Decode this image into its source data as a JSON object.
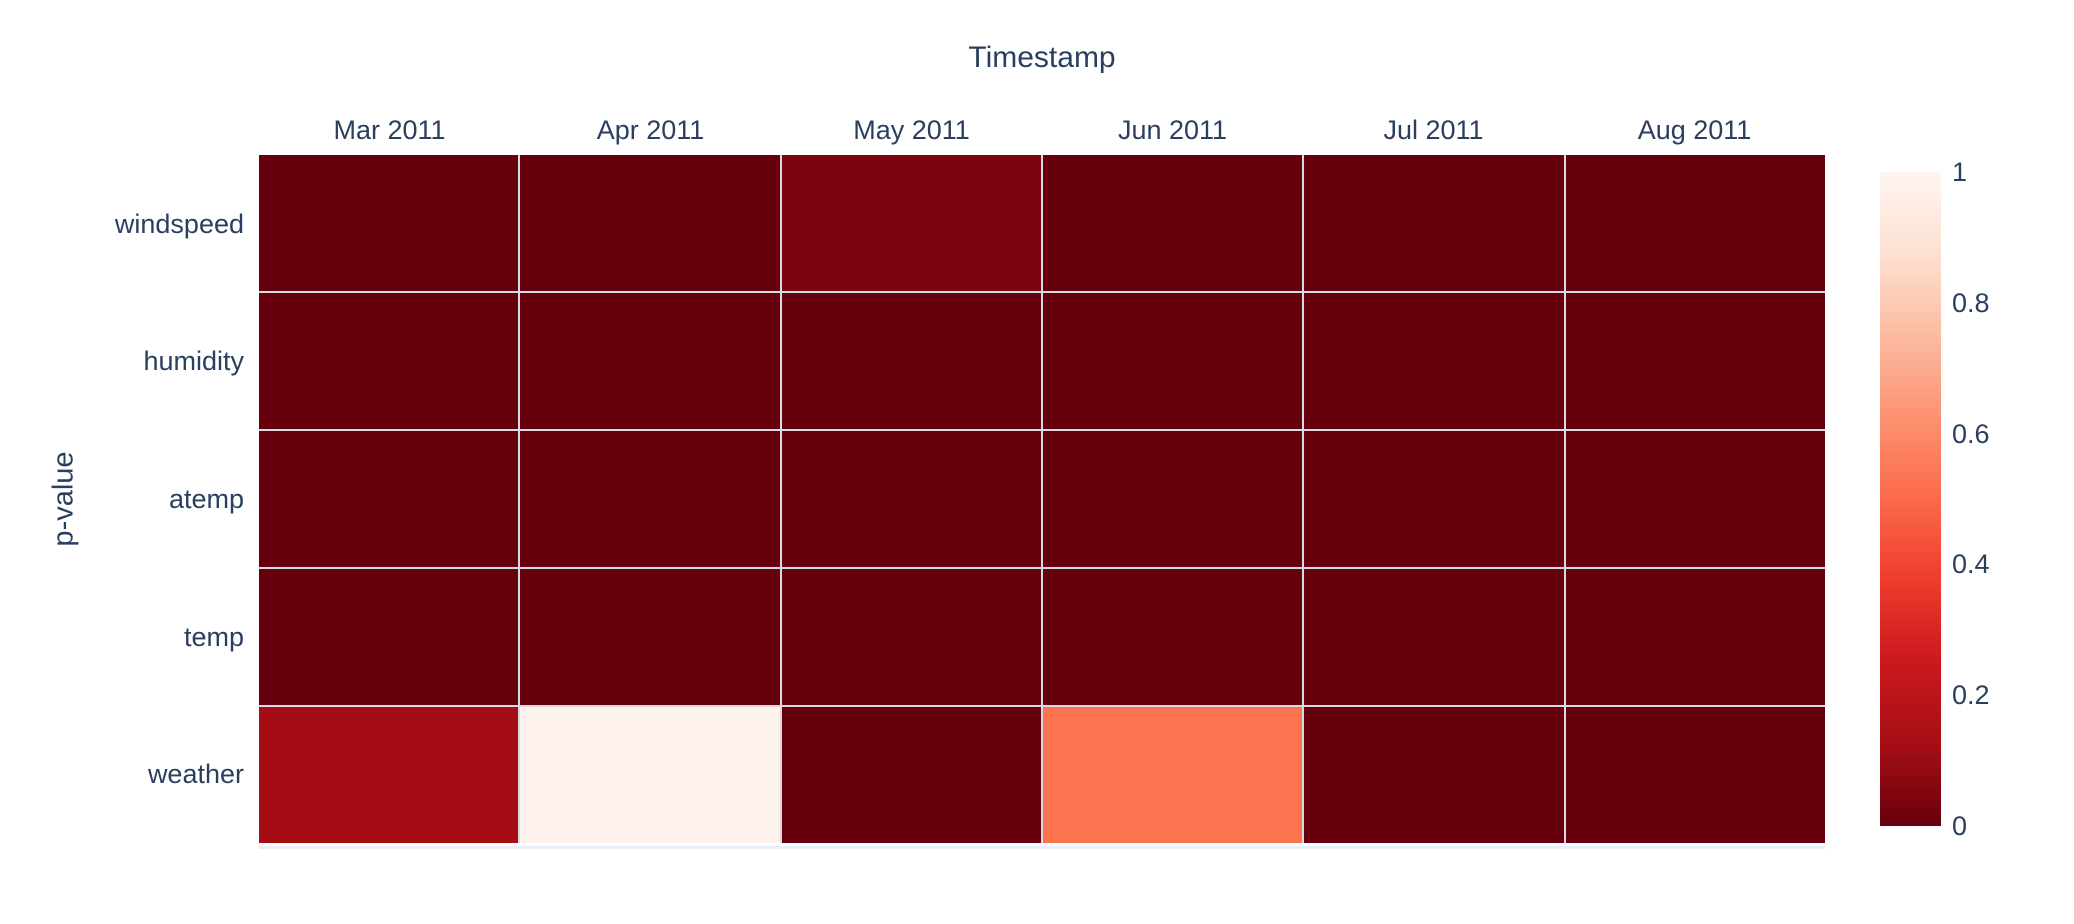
{
  "figure": {
    "x_axis_title": "Timestamp",
    "y_axis_title": "p-value",
    "text_color": "#2a3f5f",
    "background_color": "#ffffff",
    "grid_gap_color": "#d9dbe4"
  },
  "chart_data": {
    "type": "heatmap",
    "title": "Timestamp",
    "xlabel": "Timestamp",
    "ylabel": "p-value",
    "x_categories": [
      "Mar 2011",
      "Apr 2011",
      "May 2011",
      "Jun 2011",
      "Jul 2011",
      "Aug 2011"
    ],
    "y_categories": [
      "windspeed",
      "humidity",
      "atemp",
      "temp",
      "weather"
    ],
    "values": [
      [
        0.0,
        0.0,
        0.04,
        0.0,
        0.0,
        0.0
      ],
      [
        0.0,
        0.0,
        0.0,
        0.0,
        0.0,
        0.0
      ],
      [
        0.0,
        0.0,
        0.0,
        0.0,
        0.0,
        0.0
      ],
      [
        0.0,
        0.0,
        0.0,
        0.0,
        0.0,
        0.0
      ],
      [
        0.12,
        0.99,
        0.0,
        0.53,
        0.0,
        0.0
      ]
    ],
    "cell_colors": [
      [
        "#67000d",
        "#67000d",
        "#7d040e",
        "#67000d",
        "#67000d",
        "#67000d"
      ],
      [
        "#67000d",
        "#67000d",
        "#67000d",
        "#67000d",
        "#67000d",
        "#67000d"
      ],
      [
        "#67000d",
        "#67000d",
        "#67000d",
        "#67000d",
        "#67000d",
        "#67000d"
      ],
      [
        "#67000d",
        "#67000d",
        "#67000d",
        "#67000d",
        "#67000d",
        "#67000d"
      ],
      [
        "#a40d13",
        "#fef3ec",
        "#67000d",
        "#fc744f",
        "#67000d",
        "#67000d"
      ]
    ],
    "colorscale": {
      "name": "Reds reversed (0 = dark red, 1 = near white)",
      "stops": [
        {
          "value": 0.0,
          "color": "rgb(103,0,13)"
        },
        {
          "value": 0.125,
          "color": "rgb(165,15,21)"
        },
        {
          "value": 0.25,
          "color": "rgb(203,24,29)"
        },
        {
          "value": 0.375,
          "color": "rgb(239,59,44)"
        },
        {
          "value": 0.5,
          "color": "rgb(251,106,74)"
        },
        {
          "value": 0.625,
          "color": "rgb(252,146,114)"
        },
        {
          "value": 0.75,
          "color": "rgb(252,187,161)"
        },
        {
          "value": 0.875,
          "color": "rgb(254,224,210)"
        },
        {
          "value": 1.0,
          "color": "rgb(255,245,240)"
        }
      ]
    },
    "colorbar": {
      "min": 0,
      "max": 1,
      "ticks": [
        {
          "label": "1",
          "value": 1.0
        },
        {
          "label": "0.8",
          "value": 0.8
        },
        {
          "label": "0.6",
          "value": 0.6
        },
        {
          "label": "0.4",
          "value": 0.4
        },
        {
          "label": "0.2",
          "value": 0.2
        },
        {
          "label": "0",
          "value": 0.0
        }
      ]
    },
    "legend_position": "right",
    "grid": false,
    "axis_ranges": {
      "x": "categorical (6 months)",
      "y": "categorical (5 features)"
    }
  }
}
